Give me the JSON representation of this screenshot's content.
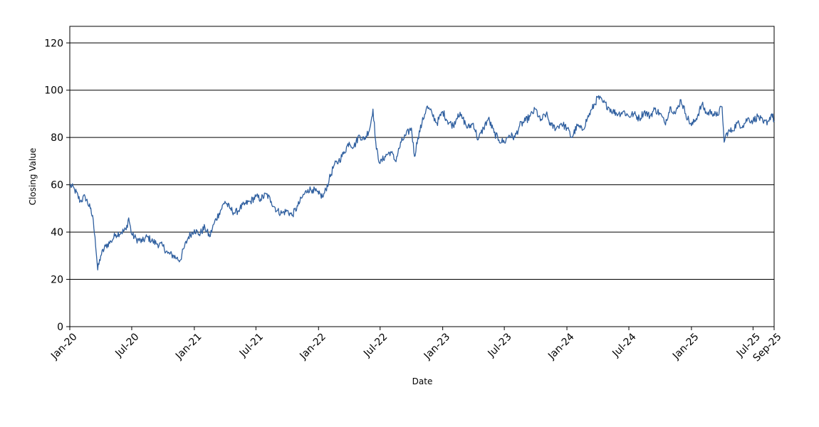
{
  "chart_data": {
    "type": "line",
    "title": "",
    "xlabel": "Date",
    "ylabel": "Closing Value",
    "ylim": [
      0,
      127
    ],
    "yticks": [
      0,
      20,
      40,
      60,
      80,
      100,
      120
    ],
    "xlim": [
      "2020-01-01",
      "2025-09-01"
    ],
    "xticks": [
      {
        "label": "Jan-20",
        "date": "2020-01-01"
      },
      {
        "label": "Jul-20",
        "date": "2020-07-01"
      },
      {
        "label": "Jan-21",
        "date": "2021-01-01"
      },
      {
        "label": "Jul-21",
        "date": "2021-07-01"
      },
      {
        "label": "Jan-22",
        "date": "2022-01-01"
      },
      {
        "label": "Jul-22",
        "date": "2022-07-01"
      },
      {
        "label": "Jan-23",
        "date": "2023-01-01"
      },
      {
        "label": "Jul-23",
        "date": "2023-07-01"
      },
      {
        "label": "Jan-24",
        "date": "2024-01-01"
      },
      {
        "label": "Jul-24",
        "date": "2024-07-01"
      },
      {
        "label": "Jan-25",
        "date": "2025-01-01"
      },
      {
        "label": "Jul-25",
        "date": "2025-07-01"
      },
      {
        "label": "Sep-25",
        "date": "2025-09-01"
      }
    ],
    "grid": "horizontal",
    "legend": "none",
    "line_color": "#2f5f9f",
    "series": [
      {
        "x": [
          "2020-01-01",
          "2020-01-15",
          "2020-02-01",
          "2020-02-15",
          "2020-03-01",
          "2020-03-10",
          "2020-03-15",
          "2020-03-23",
          "2020-04-01",
          "2020-04-15",
          "2020-05-01",
          "2020-05-15",
          "2020-06-01",
          "2020-06-15",
          "2020-06-22",
          "2020-07-01",
          "2020-07-15",
          "2020-08-01",
          "2020-08-15",
          "2020-09-01",
          "2020-09-15",
          "2020-10-01",
          "2020-10-15",
          "2020-11-01",
          "2020-11-10",
          "2020-11-20",
          "2020-12-01",
          "2020-12-15",
          "2021-01-01",
          "2021-01-15",
          "2021-02-01",
          "2021-02-15",
          "2021-03-01",
          "2021-03-15",
          "2021-04-01",
          "2021-04-15",
          "2021-05-01",
          "2021-05-15",
          "2021-06-01",
          "2021-06-15",
          "2021-07-01",
          "2021-07-15",
          "2021-08-01",
          "2021-08-15",
          "2021-09-01",
          "2021-09-15",
          "2021-10-01",
          "2021-10-15",
          "2021-11-01",
          "2021-11-15",
          "2021-12-01",
          "2021-12-15",
          "2022-01-01",
          "2022-01-15",
          "2022-02-01",
          "2022-02-15",
          "2022-03-01",
          "2022-03-15",
          "2022-04-01",
          "2022-04-15",
          "2022-05-01",
          "2022-05-15",
          "2022-06-01",
          "2022-06-10",
          "2022-06-20",
          "2022-07-01",
          "2022-07-15",
          "2022-08-01",
          "2022-08-15",
          "2022-09-01",
          "2022-09-15",
          "2022-10-01",
          "2022-10-10",
          "2022-10-20",
          "2022-11-01",
          "2022-11-15",
          "2022-12-01",
          "2022-12-15",
          "2023-01-01",
          "2023-01-15",
          "2023-02-01",
          "2023-02-15",
          "2023-03-01",
          "2023-03-15",
          "2023-04-01",
          "2023-04-15",
          "2023-05-01",
          "2023-05-15",
          "2023-06-01",
          "2023-06-15",
          "2023-07-01",
          "2023-07-15",
          "2023-08-01",
          "2023-08-15",
          "2023-09-01",
          "2023-09-15",
          "2023-10-01",
          "2023-10-15",
          "2023-11-01",
          "2023-11-15",
          "2023-12-01",
          "2023-12-15",
          "2024-01-01",
          "2024-01-15",
          "2024-02-01",
          "2024-02-15",
          "2024-03-01",
          "2024-03-15",
          "2024-04-01",
          "2024-04-15",
          "2024-05-01",
          "2024-05-15",
          "2024-06-01",
          "2024-06-15",
          "2024-07-01",
          "2024-07-15",
          "2024-08-01",
          "2024-08-15",
          "2024-09-01",
          "2024-09-15",
          "2024-10-01",
          "2024-10-15",
          "2024-11-01",
          "2024-11-15",
          "2024-12-01",
          "2024-12-15",
          "2025-01-01",
          "2025-01-15",
          "2025-02-01",
          "2025-02-15",
          "2025-03-01",
          "2025-03-15",
          "2025-04-01",
          "2025-04-07",
          "2025-04-15",
          "2025-05-01",
          "2025-05-15",
          "2025-06-01",
          "2025-06-15",
          "2025-07-01",
          "2025-07-15",
          "2025-08-01",
          "2025-08-15",
          "2025-08-25",
          "2025-09-01"
        ],
        "y": [
          60,
          58,
          53,
          55,
          50,
          45,
          38,
          24,
          30,
          34,
          36,
          39,
          40,
          41,
          46,
          39,
          37,
          36,
          38,
          36,
          35,
          34,
          31,
          30,
          29,
          28,
          33,
          38,
          41,
          39,
          42,
          38,
          44,
          48,
          53,
          50,
          48,
          50,
          52,
          53,
          55,
          54,
          56,
          53,
          49,
          48,
          49,
          47,
          51,
          55,
          58,
          58,
          56,
          55,
          62,
          68,
          70,
          73,
          78,
          76,
          81,
          79,
          84,
          92,
          75,
          69,
          72,
          74,
          70,
          78,
          81,
          84,
          72,
          80,
          86,
          93,
          90,
          86,
          91,
          87,
          85,
          90,
          88,
          84,
          86,
          79,
          84,
          88,
          82,
          79,
          78,
          81,
          80,
          85,
          87,
          89,
          92,
          87,
          90,
          85,
          84,
          86,
          84,
          80,
          85,
          83,
          88,
          92,
          97,
          95,
          93,
          91,
          90,
          91,
          89,
          90,
          88,
          91,
          89,
          92,
          90,
          86,
          93,
          90,
          96,
          90,
          85,
          88,
          94,
          90,
          91,
          89,
          93,
          78,
          82,
          83,
          86,
          85,
          88,
          87,
          89,
          86,
          87,
          90,
          87
        ]
      }
    ]
  }
}
